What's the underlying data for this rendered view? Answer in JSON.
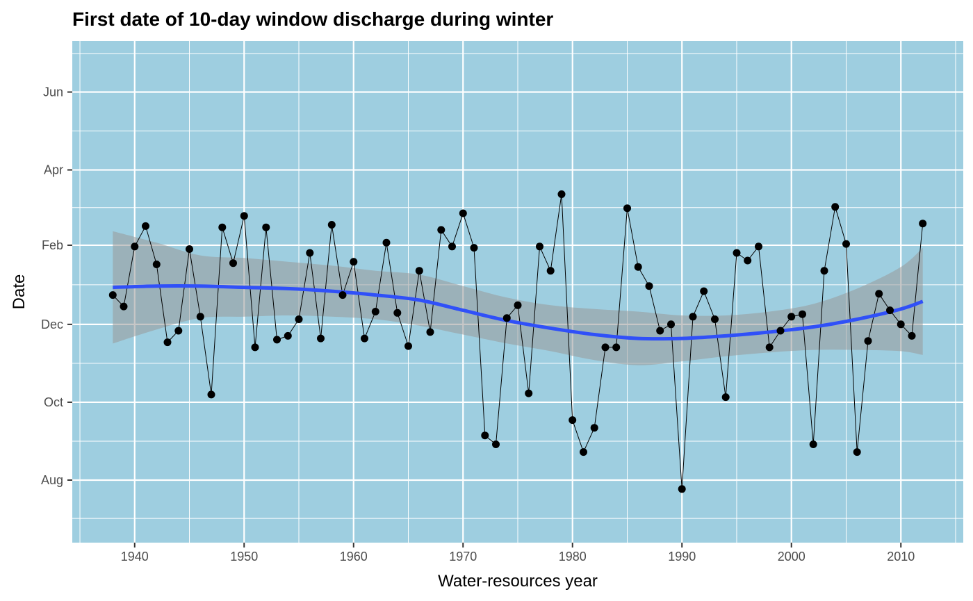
{
  "chart_data": {
    "type": "line",
    "title": "First date of 10-day window discharge during winter",
    "xlabel": "Water-resources year",
    "ylabel": "Date",
    "x_ticks": [
      1940,
      1950,
      1960,
      1970,
      1980,
      1990,
      2000,
      2010
    ],
    "xlim": [
      1934.3,
      2015.7
    ],
    "y_ticks": [
      {
        "label": "Aug",
        "value": 0
      },
      {
        "label": "Oct",
        "value": 61
      },
      {
        "label": "Dec",
        "value": 122
      },
      {
        "label": "Feb",
        "value": 184
      },
      {
        "label": "Apr",
        "value": 243
      },
      {
        "label": "Jun",
        "value": 304
      }
    ],
    "y_unit_note": "days after Aug 1",
    "ylim": [
      -49,
      344
    ],
    "grid": true,
    "legend": "none",
    "colors": {
      "panel_background": "#9ecee0",
      "grid": "#ffffff",
      "points": "#000000",
      "line": "#000000",
      "smooth": "#3050f8",
      "ribbon": "#999999"
    },
    "series": [
      {
        "type": "line+points",
        "x": [
          1938,
          1939,
          1940,
          1941,
          1942,
          1943,
          1944,
          1945,
          1946,
          1947,
          1948,
          1949,
          1950,
          1951,
          1952,
          1953,
          1954,
          1955,
          1956,
          1957,
          1958,
          1959,
          1960,
          1961,
          1962,
          1963,
          1964,
          1965,
          1966,
          1967,
          1968,
          1969,
          1970,
          1971,
          1972,
          1973,
          1974,
          1975,
          1976,
          1977,
          1978,
          1979,
          1980,
          1981,
          1982,
          1983,
          1984,
          1985,
          1986,
          1987,
          1988,
          1989,
          1990,
          1991,
          1992,
          1993,
          1994,
          1995,
          1996,
          1997,
          1998,
          1999,
          2000,
          2001,
          2002,
          2003,
          2004,
          2005,
          2006,
          2007,
          2008,
          2009,
          2010,
          2011,
          2012
        ],
        "y": [
          145,
          136,
          183,
          199,
          169,
          108,
          117,
          181,
          128,
          67,
          198,
          170,
          207,
          104,
          198,
          110,
          113,
          126,
          178,
          111,
          200,
          145,
          171,
          111,
          132,
          186,
          131,
          105,
          164,
          116,
          196,
          183,
          209,
          182,
          35,
          28,
          127,
          137,
          68,
          183,
          164,
          224,
          47,
          22,
          41,
          104,
          104,
          213,
          167,
          152,
          117,
          122,
          -7,
          128,
          148,
          126,
          65,
          178,
          172,
          183,
          104,
          117,
          128,
          130,
          28,
          164,
          214,
          185,
          22,
          109,
          146,
          133,
          122,
          113,
          201
        ]
      },
      {
        "type": "smooth",
        "x": [
          1938,
          1942,
          1946,
          1950,
          1954,
          1958,
          1962,
          1966,
          1970,
          1974,
          1978,
          1982,
          1986,
          1990,
          1994,
          1998,
          2002,
          2006,
          2010,
          2012
        ],
        "y": [
          151,
          152,
          152,
          151,
          150,
          148,
          145,
          141,
          133,
          125,
          119,
          114,
          111,
          111,
          113,
          116,
          120,
          126,
          134,
          140
        ],
        "lower": [
          107,
          118,
          127,
          128,
          129,
          128,
          126,
          121,
          114,
          107,
          101,
          94,
          90,
          93,
          97,
          100,
          102,
          102,
          101,
          98
        ],
        "upper": [
          195,
          186,
          176,
          174,
          171,
          168,
          164,
          161,
          152,
          143,
          137,
          134,
          132,
          129,
          129,
          132,
          138,
          150,
          167,
          182
        ]
      }
    ]
  }
}
